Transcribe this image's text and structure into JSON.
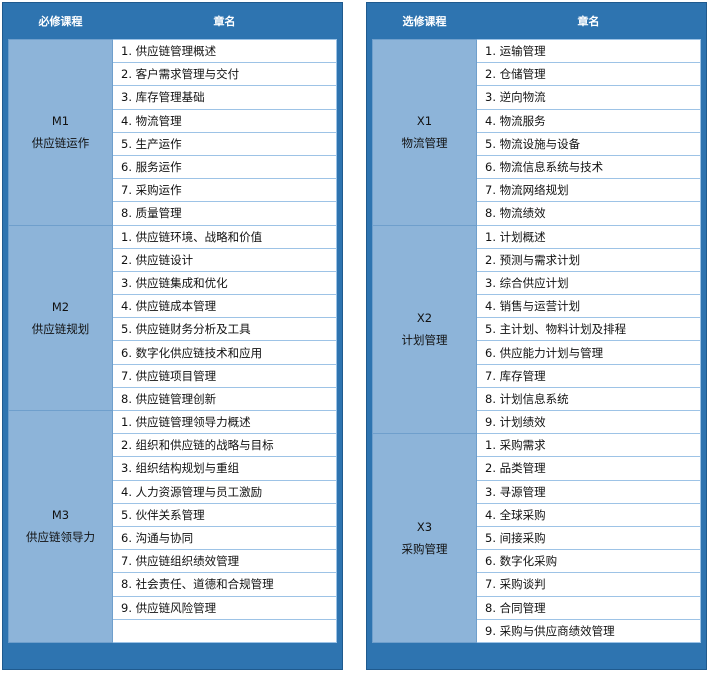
{
  "left": {
    "header": {
      "course": "必修课程",
      "chapter": "章名"
    },
    "modules": [
      {
        "code": "M1",
        "name": "供应链运作",
        "chapters": [
          "1. 供应链管理概述",
          "2. 客户需求管理与交付",
          "3. 库存管理基础",
          "4. 物流管理",
          "5. 生产运作",
          "6. 服务运作",
          "7. 采购运作",
          "8. 质量管理"
        ]
      },
      {
        "code": "M2",
        "name": "供应链规划",
        "chapters": [
          "1. 供应链环境、战略和价值",
          "2. 供应链设计",
          "3. 供应链集成和优化",
          "4. 供应链成本管理",
          "5. 供应链财务分析及工具",
          "6. 数字化供应链技术和应用",
          "7. 供应链项目管理",
          "8. 供应链管理创新"
        ]
      },
      {
        "code": "M3",
        "name": "供应链领导力",
        "chapters": [
          "1. 供应链管理领导力概述",
          "2. 组织和供应链的战略与目标",
          "3. 组织结构规划与重组",
          "4. 人力资源管理与员工激励",
          "5. 伙伴关系管理",
          "6. 沟通与协同",
          "7. 供应链组织绩效管理",
          "8. 社会责任、道德和合规管理",
          "9. 供应链风险管理",
          ""
        ]
      }
    ]
  },
  "right": {
    "header": {
      "course": "选修课程",
      "chapter": "章名"
    },
    "modules": [
      {
        "code": "X1",
        "name": "物流管理",
        "chapters": [
          "1. 运输管理",
          "2. 仓储管理",
          "3. 逆向物流",
          "4. 物流服务",
          "5. 物流设施与设备",
          "6. 物流信息系统与技术",
          "7. 物流网络规划",
          "8. 物流绩效"
        ]
      },
      {
        "code": "X2",
        "name": "计划管理",
        "chapters": [
          "1. 计划概述",
          "2. 预测与需求计划",
          "3. 综合供应计划",
          "4. 销售与运营计划",
          "5. 主计划、物料计划及排程",
          "6. 供应能力计划与管理",
          "7. 库存管理",
          "8. 计划信息系统",
          "9. 计划绩效"
        ]
      },
      {
        "code": "X3",
        "name": "采购管理",
        "chapters": [
          "1. 采购需求",
          "2. 品类管理",
          "3. 寻源管理",
          "4. 全球采购",
          "5. 间接采购",
          "6. 数字化采购",
          "7. 采购谈判",
          "8. 合同管理",
          "9. 采购与供应商绩效管理"
        ]
      }
    ]
  },
  "colors": {
    "header": "#2e74b0",
    "module_cell": "#8db4d9",
    "row_border": "#9dc3e6"
  }
}
